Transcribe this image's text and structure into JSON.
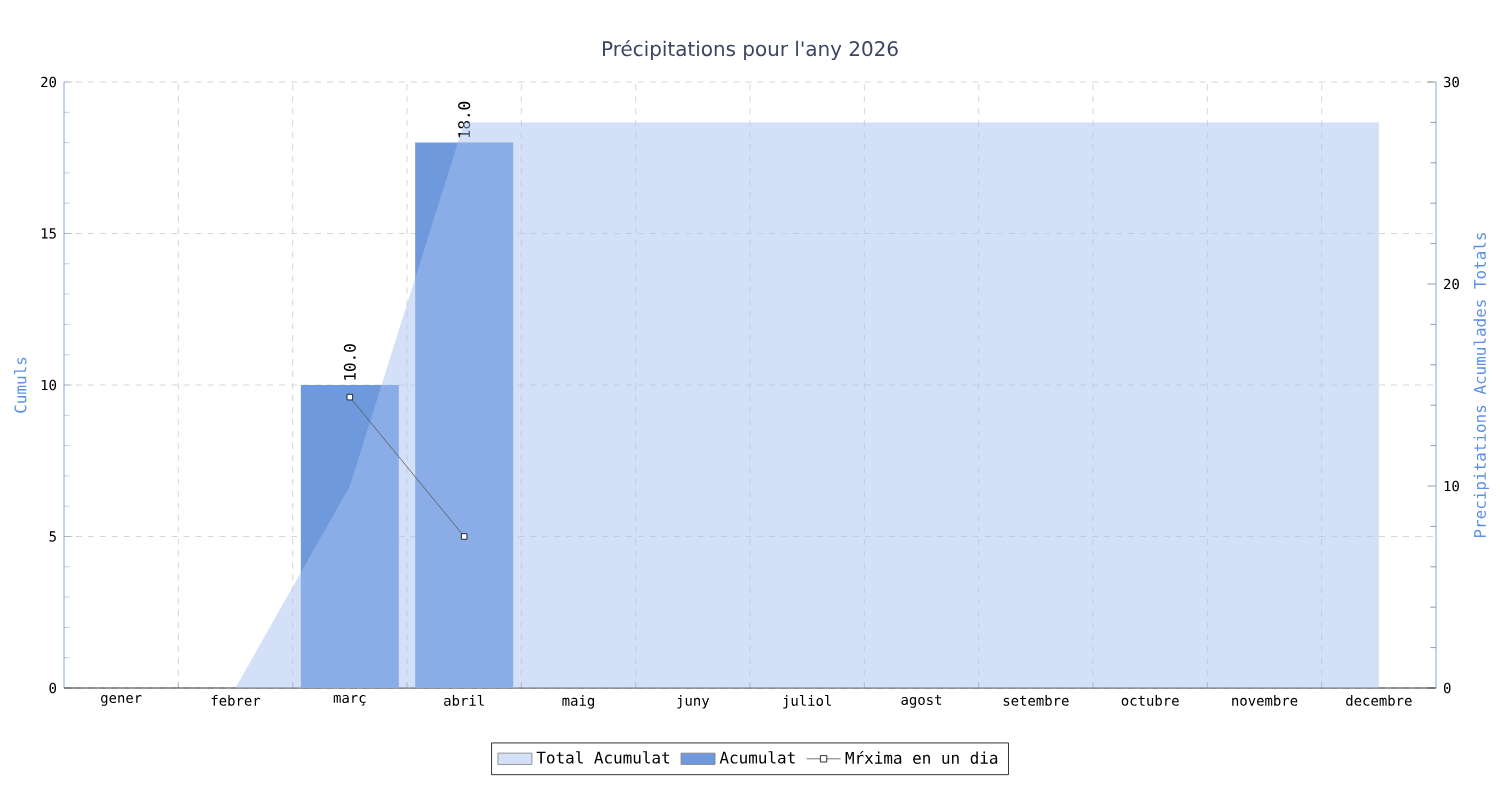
{
  "chart_data": {
    "type": "bar",
    "title": "Précipitations pour l'any 2026",
    "ylabel": "Cumuls",
    "y2label": "Precipitations Acumulades Totals",
    "categories": [
      "gener",
      "febrer",
      "març",
      "abril",
      "maig",
      "juny",
      "juliol",
      "agost",
      "setembre",
      "octubre",
      "novembre",
      "decembre"
    ],
    "ylim": [
      0,
      20
    ],
    "yticks": [
      0,
      5,
      10,
      15,
      20
    ],
    "y2lim": [
      0,
      30
    ],
    "y2ticks": [
      0,
      10,
      20,
      30
    ],
    "grid": true,
    "legend": "bottom",
    "series": [
      {
        "name": "Total Acumulat",
        "type": "area",
        "axis": "y2",
        "color": "#a7c1f1",
        "values": [
          null,
          0,
          10,
          28,
          28,
          28,
          28,
          28,
          28,
          28,
          28,
          28
        ]
      },
      {
        "name": "Acumulat",
        "color": "#6f99dd",
        "values": [
          null,
          null,
          10,
          18,
          null,
          null,
          null,
          null,
          null,
          null,
          null,
          null
        ],
        "value_labels": [
          null,
          null,
          "10.0",
          "18.0",
          null,
          null,
          null,
          null,
          null,
          null,
          null,
          null
        ]
      },
      {
        "name": "Mŕxima en un dia",
        "type": "line",
        "color": "#555555",
        "marker": "square",
        "values": [
          null,
          null,
          9.6,
          5,
          null,
          null,
          null,
          null,
          null,
          null,
          null,
          null
        ]
      }
    ]
  }
}
